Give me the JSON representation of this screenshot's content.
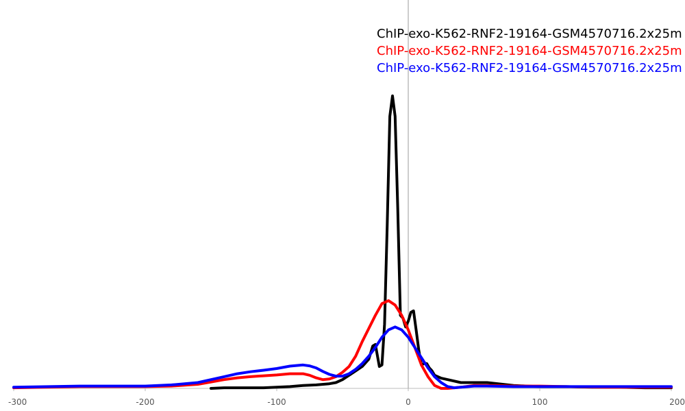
{
  "chart_data": {
    "type": "line",
    "title": "",
    "xlabel": "",
    "ylabel": "",
    "xlim": [
      -300,
      200
    ],
    "ylim": [
      0,
      1.0
    ],
    "grid": false,
    "legend_position": "top-right",
    "x_ticks": [
      -300,
      -200,
      -100,
      0,
      100,
      200
    ],
    "x_tick_labels": [
      "-300",
      "-200",
      "-100",
      "0",
      "100",
      "200"
    ],
    "vline_x": 0,
    "series": [
      {
        "name": "ChIP-exo-K562-RNF2-19164-GSM4570716.2x25m",
        "color": "#000000",
        "x": [
          -150,
          -140,
          -120,
          -110,
          -100,
          -90,
          -80,
          -70,
          -60,
          -55,
          -50,
          -45,
          -40,
          -35,
          -30,
          -27,
          -25,
          -22,
          -20,
          -18,
          -16,
          -14,
          -12,
          -10,
          -8,
          -6,
          -4,
          -2,
          0,
          2,
          4,
          6,
          8,
          10,
          12,
          14,
          16,
          18,
          20,
          25,
          30,
          40,
          50,
          60,
          70,
          80,
          90,
          100,
          120,
          140,
          160,
          180,
          200
        ],
        "y": [
          0.0,
          0.002,
          0.002,
          0.002,
          0.004,
          0.006,
          0.01,
          0.012,
          0.016,
          0.02,
          0.03,
          0.045,
          0.06,
          0.075,
          0.1,
          0.145,
          0.15,
          0.075,
          0.08,
          0.22,
          0.56,
          0.93,
          1.0,
          0.93,
          0.62,
          0.25,
          0.24,
          0.21,
          0.23,
          0.26,
          0.265,
          0.2,
          0.13,
          0.08,
          0.085,
          0.085,
          0.07,
          0.06,
          0.045,
          0.035,
          0.03,
          0.02,
          0.02,
          0.02,
          0.015,
          0.01,
          0.008,
          0.006,
          0.006,
          0.004,
          0.004,
          0.002,
          0.002
        ]
      },
      {
        "name": "ChIP-exo-K562-RNF2-19164-GSM4570716.2x25m",
        "color": "#ff0000",
        "x": [
          -300,
          -250,
          -200,
          -180,
          -160,
          -150,
          -140,
          -130,
          -120,
          -110,
          -100,
          -90,
          -80,
          -75,
          -70,
          -65,
          -60,
          -55,
          -50,
          -45,
          -40,
          -35,
          -30,
          -25,
          -20,
          -15,
          -10,
          -5,
          0,
          5,
          10,
          15,
          20,
          25,
          30,
          40,
          50,
          60,
          80,
          100,
          120,
          150,
          200
        ],
        "y": [
          0.002,
          0.006,
          0.006,
          0.008,
          0.014,
          0.022,
          0.03,
          0.036,
          0.04,
          0.043,
          0.046,
          0.05,
          0.05,
          0.045,
          0.036,
          0.03,
          0.032,
          0.04,
          0.055,
          0.075,
          0.11,
          0.16,
          0.205,
          0.25,
          0.29,
          0.3,
          0.285,
          0.25,
          0.2,
          0.14,
          0.08,
          0.04,
          0.01,
          0.0,
          0.0,
          0.004,
          0.01,
          0.01,
          0.008,
          0.008,
          0.006,
          0.004,
          0.004
        ]
      },
      {
        "name": "ChIP-exo-K562-RNF2-19164-GSM4570716.2x25m",
        "color": "#0000ff",
        "x": [
          -300,
          -250,
          -200,
          -180,
          -160,
          -150,
          -140,
          -130,
          -120,
          -110,
          -100,
          -90,
          -80,
          -75,
          -70,
          -65,
          -60,
          -55,
          -50,
          -45,
          -40,
          -35,
          -30,
          -25,
          -20,
          -15,
          -10,
          -5,
          0,
          5,
          10,
          15,
          20,
          25,
          30,
          35,
          40,
          50,
          60,
          80,
          100,
          120,
          150,
          200
        ],
        "y": [
          0.004,
          0.008,
          0.008,
          0.012,
          0.02,
          0.03,
          0.04,
          0.05,
          0.057,
          0.062,
          0.068,
          0.076,
          0.08,
          0.077,
          0.07,
          0.058,
          0.048,
          0.042,
          0.042,
          0.05,
          0.065,
          0.085,
          0.11,
          0.14,
          0.175,
          0.2,
          0.21,
          0.2,
          0.175,
          0.14,
          0.105,
          0.07,
          0.04,
          0.02,
          0.006,
          0.002,
          0.004,
          0.008,
          0.008,
          0.006,
          0.006,
          0.006,
          0.006,
          0.006
        ]
      }
    ]
  }
}
